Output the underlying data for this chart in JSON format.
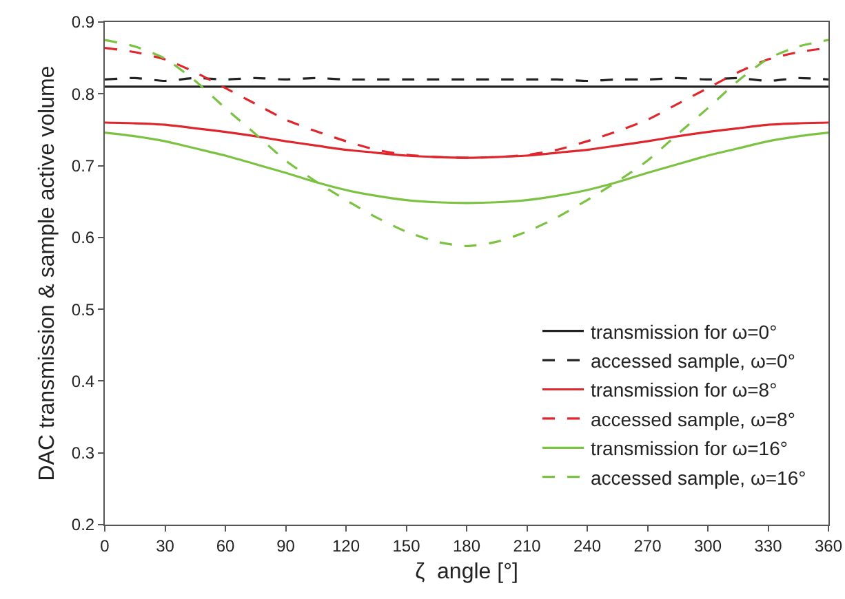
{
  "chart_data": {
    "type": "line",
    "xlabel": "ζ  angle [°]",
    "ylabel": "DAC transmission & sample active volume",
    "x": [
      0,
      15,
      30,
      45,
      60,
      75,
      90,
      105,
      120,
      135,
      150,
      165,
      180,
      195,
      210,
      225,
      240,
      255,
      270,
      285,
      300,
      315,
      330,
      345,
      360
    ],
    "xlim": [
      0,
      360
    ],
    "xticks": [
      0,
      30,
      60,
      90,
      120,
      150,
      180,
      210,
      240,
      270,
      300,
      330,
      360
    ],
    "ylim": [
      0.2,
      0.9
    ],
    "yticks": [
      0.2,
      0.3,
      0.4,
      0.5,
      0.6,
      0.7,
      0.8,
      0.9
    ],
    "grid": false,
    "legend": "bottom right",
    "marker": "none",
    "series": [
      {
        "name": "transmission for ω=0°",
        "color": "#222222",
        "line_style": "solid",
        "values": [
          0.81,
          0.81,
          0.81,
          0.81,
          0.81,
          0.81,
          0.81,
          0.81,
          0.81,
          0.81,
          0.81,
          0.81,
          0.81,
          0.81,
          0.81,
          0.81,
          0.81,
          0.81,
          0.81,
          0.81,
          0.81,
          0.81,
          0.81,
          0.81,
          0.81
        ]
      },
      {
        "name": "accessed sample, ω=0°",
        "color": "#222222",
        "line_style": "dashed",
        "values": [
          0.82,
          0.822,
          0.818,
          0.822,
          0.82,
          0.822,
          0.82,
          0.822,
          0.82,
          0.82,
          0.82,
          0.82,
          0.82,
          0.82,
          0.82,
          0.82,
          0.818,
          0.82,
          0.82,
          0.822,
          0.82,
          0.822,
          0.818,
          0.822,
          0.82
        ]
      },
      {
        "name": "transmission for ω=8°",
        "color": "#e0262d",
        "line_style": "solid",
        "values": [
          0.76,
          0.759,
          0.757,
          0.752,
          0.747,
          0.741,
          0.734,
          0.728,
          0.722,
          0.718,
          0.714,
          0.712,
          0.711,
          0.712,
          0.714,
          0.718,
          0.722,
          0.728,
          0.734,
          0.741,
          0.747,
          0.752,
          0.757,
          0.759,
          0.76
        ]
      },
      {
        "name": "accessed sample, ω=8°",
        "color": "#e0262d",
        "line_style": "dashed",
        "values": [
          0.864,
          0.858,
          0.848,
          0.83,
          0.808,
          0.786,
          0.764,
          0.748,
          0.734,
          0.722,
          0.715,
          0.712,
          0.711,
          0.712,
          0.715,
          0.722,
          0.734,
          0.748,
          0.764,
          0.786,
          0.808,
          0.83,
          0.848,
          0.858,
          0.864
        ]
      },
      {
        "name": "transmission for ω=16°",
        "color": "#7cc242",
        "line_style": "solid",
        "values": [
          0.746,
          0.741,
          0.734,
          0.724,
          0.714,
          0.702,
          0.69,
          0.677,
          0.666,
          0.658,
          0.652,
          0.649,
          0.648,
          0.649,
          0.652,
          0.658,
          0.666,
          0.677,
          0.69,
          0.702,
          0.714,
          0.724,
          0.734,
          0.741,
          0.746
        ]
      },
      {
        "name": "accessed sample, ω=16°",
        "color": "#7cc242",
        "line_style": "dashed",
        "values": [
          0.875,
          0.866,
          0.849,
          0.818,
          0.78,
          0.744,
          0.707,
          0.678,
          0.652,
          0.628,
          0.608,
          0.594,
          0.588,
          0.594,
          0.608,
          0.628,
          0.652,
          0.678,
          0.707,
          0.744,
          0.78,
          0.818,
          0.849,
          0.866,
          0.875
        ]
      }
    ]
  }
}
